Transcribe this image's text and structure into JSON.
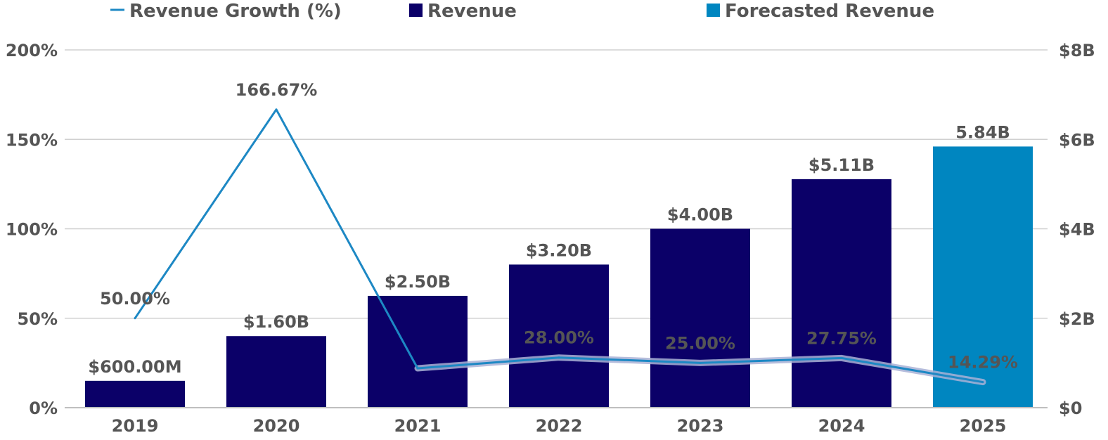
{
  "chart_data": {
    "type": "bar",
    "categories": [
      "2019",
      "2020",
      "2021",
      "2022",
      "2023",
      "2024",
      "2025"
    ],
    "series": [
      {
        "name": "Revenue",
        "kind": "bar",
        "axis": "right",
        "color": "#0b0068",
        "values": [
          0.6,
          1.6,
          2.5,
          3.2,
          4.0,
          5.11,
          null
        ],
        "labels": [
          "$600.00M",
          "$1.60B",
          "$2.50B",
          "$3.20B",
          "$4.00B",
          "$5.11B",
          ""
        ]
      },
      {
        "name": "Forecasted Revenue",
        "kind": "bar",
        "axis": "right",
        "color": "#0086c0",
        "values": [
          null,
          null,
          null,
          null,
          null,
          null,
          5.84
        ],
        "labels": [
          "",
          "",
          "",
          "",
          "",
          "",
          "5.84B"
        ]
      },
      {
        "name": "Revenue Growth (%)",
        "kind": "line",
        "axis": "left",
        "color": "#1d88c4",
        "values": [
          50.0,
          166.67,
          22.0,
          28.0,
          25.0,
          27.75,
          14.29
        ],
        "labels": [
          "50.00%",
          "166.67%",
          "",
          "28.00%",
          "25.00%",
          "27.75%",
          "14.29%"
        ]
      }
    ],
    "y_left": {
      "range": [
        0,
        200
      ],
      "ticks": [
        0,
        50,
        100,
        150,
        200
      ],
      "tick_labels": [
        "0%",
        "50%",
        "100%",
        "150%",
        "200%"
      ]
    },
    "y_right": {
      "range": [
        0,
        8
      ],
      "ticks": [
        0,
        2,
        4,
        6,
        8
      ],
      "tick_labels": [
        "$0",
        "$2B",
        "$4B",
        "$6B",
        "$8B"
      ]
    },
    "legend": {
      "position": "top",
      "items": [
        {
          "label": "Revenue Growth (%)",
          "marker": "line",
          "color": "#1d88c4"
        },
        {
          "label": "Revenue",
          "marker": "square",
          "color": "#0b0068"
        },
        {
          "label": "Forecasted Revenue",
          "marker": "square",
          "color": "#0086c0"
        }
      ]
    },
    "grid": true,
    "title": "",
    "xlabel": "",
    "ylabel": ""
  }
}
